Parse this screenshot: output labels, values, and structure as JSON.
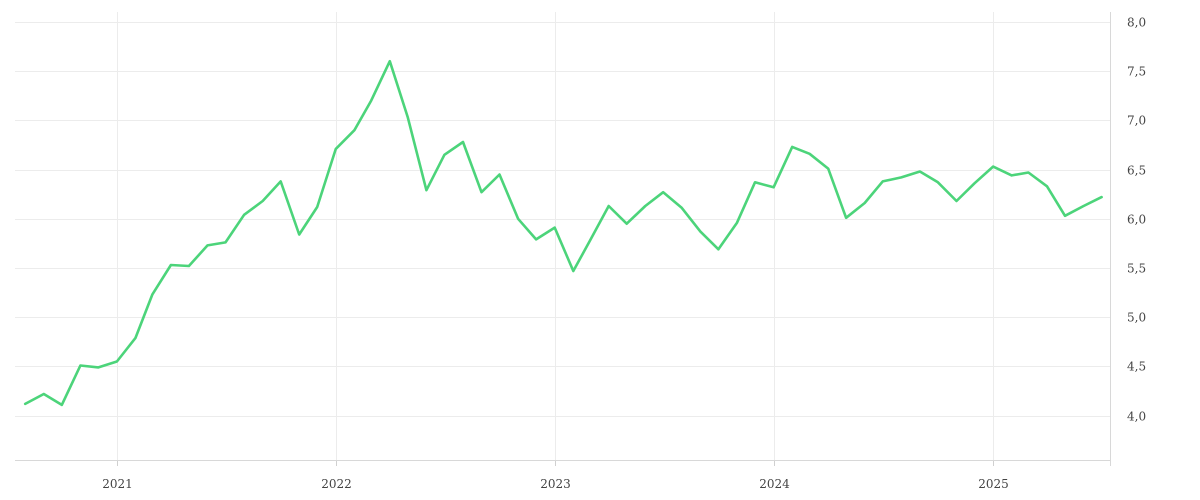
{
  "chart_data": {
    "type": "line",
    "x_tick_labels": [
      "2021",
      "2022",
      "2023",
      "2024",
      "2025"
    ],
    "y_tick_labels": [
      "4,0",
      "4,5",
      "5,0",
      "5,5",
      "6,0",
      "6,5",
      "7,0",
      "7,5",
      "8,0"
    ],
    "y_ticks": [
      4.0,
      4.5,
      5.0,
      5.5,
      6.0,
      6.5,
      7.0,
      7.5,
      8.0
    ],
    "ylim": [
      3.55,
      8.1
    ],
    "xlim": [
      "2020-07-15",
      "2025-07-15"
    ],
    "x_ticks": [
      "2021-01-01",
      "2022-01-01",
      "2023-01-01",
      "2024-01-01",
      "2025-01-01"
    ],
    "y_axis_position": "right",
    "grid": true,
    "legend": "none",
    "series": [
      {
        "color": "#4cd47a",
        "x": [
          "2020-08",
          "2020-09",
          "2020-10",
          "2020-11",
          "2020-12",
          "2021-01",
          "2021-02",
          "2021-03",
          "2021-04",
          "2021-05",
          "2021-06",
          "2021-07",
          "2021-08",
          "2021-09",
          "2021-10",
          "2021-11",
          "2021-12",
          "2022-01",
          "2022-02",
          "2022-03",
          "2022-04",
          "2022-05",
          "2022-06",
          "2022-07",
          "2022-08",
          "2022-09",
          "2022-10",
          "2022-11",
          "2022-12",
          "2023-01",
          "2023-02",
          "2023-03",
          "2023-04",
          "2023-05",
          "2023-06",
          "2023-07",
          "2023-08",
          "2023-09",
          "2023-10",
          "2023-11",
          "2023-12",
          "2024-01",
          "2024-02",
          "2024-03",
          "2024-04",
          "2024-05",
          "2024-06",
          "2024-07",
          "2024-08",
          "2024-09",
          "2024-10",
          "2024-11",
          "2024-12",
          "2025-01",
          "2025-02",
          "2025-03",
          "2025-04",
          "2025-05",
          "2025-06",
          "2025-07"
        ],
        "values": [
          4.12,
          4.22,
          4.11,
          4.51,
          4.49,
          4.55,
          4.79,
          5.23,
          5.53,
          5.52,
          5.73,
          5.76,
          6.04,
          6.18,
          6.38,
          5.84,
          6.12,
          6.71,
          6.9,
          7.2,
          7.6,
          7.03,
          6.29,
          6.65,
          6.78,
          6.27,
          6.45,
          6.0,
          5.79,
          5.91,
          5.47,
          5.78,
          6.13,
          5.95,
          6.13,
          6.27,
          6.11,
          5.87,
          5.69,
          5.96,
          6.37,
          6.32,
          6.73,
          6.66,
          6.51,
          6.01,
          6.16,
          6.38,
          6.42,
          6.48,
          6.37,
          6.18,
          6.36,
          6.53,
          6.44,
          6.47,
          6.33,
          6.03,
          6.13,
          6.22
        ]
      }
    ]
  }
}
